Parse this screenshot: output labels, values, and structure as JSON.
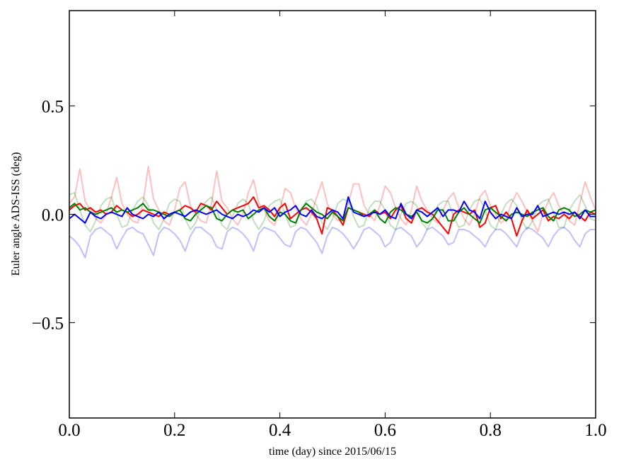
{
  "chart_data": {
    "type": "line",
    "title": "",
    "xlabel": "time (day) since 2015/06/15",
    "ylabel": "Euler angle ADS-ISS (deg)",
    "xlim": [
      0.0,
      1.0
    ],
    "ylim": [
      -0.94,
      0.94
    ],
    "xticks": [
      0.0,
      0.2,
      0.4,
      0.6,
      0.8,
      1.0
    ],
    "xtick_labels": [
      "0.0",
      "0.2",
      "0.4",
      "0.6",
      "0.8",
      "1.0"
    ],
    "yticks": [
      0.5,
      0.0,
      -0.5
    ],
    "ytick_labels": [
      "0.5",
      "0.0",
      "−0.5"
    ],
    "grid": false,
    "x_start": 0.0,
    "x_step": 0.01,
    "series": [
      {
        "name": "faded-red",
        "color": "#ff0000",
        "opacity": 0.25,
        "values": [
          0.05,
          0.08,
          0.21,
          0.06,
          0.02,
          -0.02,
          -0.04,
          0.0,
          0.08,
          0.17,
          0.05,
          0.0,
          -0.03,
          -0.04,
          0.05,
          0.22,
          0.07,
          0.02,
          -0.03,
          -0.05,
          0.02,
          0.12,
          0.15,
          0.04,
          0.0,
          -0.03,
          -0.04,
          0.05,
          0.2,
          0.06,
          0.03,
          -0.02,
          -0.05,
          0.0,
          0.1,
          0.16,
          0.05,
          0.02,
          -0.03,
          -0.05,
          0.02,
          0.12,
          0.1,
          0.03,
          -0.02,
          -0.05,
          0.0,
          0.08,
          0.15,
          0.05,
          0.0,
          -0.03,
          -0.02,
          0.05,
          0.14,
          0.14,
          0.04,
          0.0,
          -0.03,
          0.04,
          0.13,
          0.1,
          0.03,
          -0.02,
          -0.05,
          0.02,
          0.13,
          0.06,
          0.02,
          -0.02,
          -0.04,
          0.02,
          0.07,
          0.1,
          0.03,
          -0.02,
          -0.05,
          0.0,
          0.08,
          0.11,
          0.04,
          0.0,
          -0.04,
          -0.02,
          0.05,
          0.1,
          0.06,
          0.01,
          -0.03,
          -0.08,
          0.0,
          0.06,
          0.1,
          0.04,
          0.0,
          -0.03,
          -0.05,
          0.05,
          0.15,
          0.08,
          0.02
        ]
      },
      {
        "name": "faded-green",
        "color": "#008000",
        "opacity": 0.25,
        "values": [
          0.09,
          0.1,
          0.02,
          -0.05,
          -0.08,
          -0.03,
          0.04,
          0.07,
          0.08,
          0.0,
          -0.06,
          -0.05,
          0.02,
          0.06,
          0.08,
          0.04,
          -0.04,
          -0.07,
          -0.02,
          0.05,
          0.07,
          0.06,
          -0.02,
          -0.07,
          -0.04,
          0.03,
          0.06,
          0.08,
          0.02,
          -0.05,
          -0.07,
          -0.01,
          0.05,
          0.07,
          0.05,
          -0.03,
          -0.07,
          -0.03,
          0.04,
          0.06,
          0.07,
          0.0,
          -0.06,
          -0.05,
          0.02,
          0.06,
          0.07,
          0.04,
          -0.04,
          -0.07,
          -0.02,
          0.05,
          0.07,
          0.06,
          -0.01,
          -0.06,
          -0.05,
          0.03,
          0.06,
          0.06,
          0.02,
          -0.05,
          -0.07,
          0.0,
          0.05,
          0.06,
          0.04,
          -0.04,
          -0.07,
          -0.02,
          0.04,
          0.06,
          0.06,
          -0.01,
          -0.06,
          -0.05,
          0.02,
          0.06,
          0.07,
          0.02,
          -0.05,
          -0.07,
          0.0,
          0.05,
          0.07,
          0.04,
          -0.03,
          -0.07,
          -0.03,
          0.04,
          0.06,
          0.07,
          0.01,
          -0.06,
          -0.06,
          0.02,
          0.06,
          0.09,
          0.04,
          -0.02,
          -0.03
        ]
      },
      {
        "name": "faded-blue",
        "color": "#0000ff",
        "opacity": 0.25,
        "values": [
          -0.1,
          -0.12,
          -0.15,
          -0.2,
          -0.1,
          -0.07,
          -0.06,
          -0.08,
          -0.1,
          -0.16,
          -0.11,
          -0.07,
          -0.06,
          -0.08,
          -0.09,
          -0.14,
          -0.19,
          -0.09,
          -0.06,
          -0.07,
          -0.09,
          -0.12,
          -0.17,
          -0.1,
          -0.06,
          -0.06,
          -0.08,
          -0.1,
          -0.15,
          -0.16,
          -0.08,
          -0.06,
          -0.07,
          -0.09,
          -0.12,
          -0.17,
          -0.09,
          -0.06,
          -0.07,
          -0.08,
          -0.11,
          -0.14,
          -0.15,
          -0.08,
          -0.06,
          -0.07,
          -0.1,
          -0.13,
          -0.18,
          -0.1,
          -0.06,
          -0.07,
          -0.09,
          -0.12,
          -0.16,
          -0.12,
          -0.07,
          -0.06,
          -0.08,
          -0.1,
          -0.15,
          -0.13,
          -0.07,
          -0.06,
          -0.08,
          -0.1,
          -0.15,
          -0.12,
          -0.07,
          -0.06,
          -0.08,
          -0.1,
          -0.14,
          -0.13,
          -0.07,
          -0.07,
          -0.08,
          -0.1,
          -0.12,
          -0.15,
          -0.1,
          -0.07,
          -0.07,
          -0.09,
          -0.12,
          -0.15,
          -0.09,
          -0.06,
          -0.07,
          -0.09,
          -0.11,
          -0.15,
          -0.1,
          -0.07,
          -0.06,
          -0.08,
          -0.12,
          -0.15,
          -0.09,
          -0.07,
          -0.07
        ]
      },
      {
        "name": "red",
        "color": "#ff0000",
        "opacity": 1,
        "values": [
          0.02,
          0.04,
          0.05,
          0.02,
          0.03,
          0.01,
          0.02,
          0.0,
          0.01,
          0.04,
          0.02,
          0.01,
          -0.01,
          0.0,
          0.02,
          0.01,
          0.0,
          -0.01,
          0.01,
          0.0,
          0.01,
          0.02,
          0.04,
          0.03,
          0.01,
          0.05,
          0.04,
          0.02,
          0.06,
          0.03,
          0.0,
          0.02,
          0.03,
          0.04,
          0.05,
          0.08,
          0.03,
          0.04,
          0.02,
          -0.01,
          0.03,
          0.05,
          -0.02,
          0.0,
          0.02,
          0.03,
          0.01,
          -0.02,
          -0.09,
          0.03,
          0.02,
          -0.01,
          -0.05,
          0.03,
          0.02,
          0.01,
          0.0,
          -0.01,
          0.02,
          0.0,
          0.01,
          -0.02,
          0.02,
          0.04,
          -0.02,
          -0.04,
          0.02,
          0.03,
          0.01,
          0.0,
          -0.03,
          -0.06,
          -0.09,
          0.0,
          0.02,
          0.01,
          0.0,
          0.02,
          -0.06,
          -0.04,
          0.03,
          0.04,
          -0.02,
          0.01,
          -0.02,
          -0.1,
          -0.03,
          0.02,
          -0.02,
          0.0,
          0.02,
          -0.03,
          -0.01,
          -0.02,
          0.0,
          -0.02,
          0.01,
          -0.01,
          -0.03,
          0.01,
          0.0
        ]
      },
      {
        "name": "green",
        "color": "#008000",
        "opacity": 1,
        "values": [
          0.03,
          0.05,
          0.02,
          0.03,
          0.01,
          0.0,
          0.01,
          0.02,
          0.03,
          0.01,
          0.02,
          0.01,
          0.02,
          0.03,
          0.05,
          0.02,
          0.02,
          0.01,
          0.0,
          -0.01,
          0.01,
          0.02,
          -0.02,
          -0.03,
          0.0,
          0.02,
          0.04,
          0.03,
          -0.02,
          -0.03,
          0.0,
          0.02,
          0.01,
          0.02,
          -0.02,
          0.0,
          0.02,
          0.03,
          -0.01,
          -0.03,
          0.01,
          0.0,
          -0.03,
          -0.04,
          0.02,
          0.05,
          0.03,
          0.01,
          0.0,
          -0.02,
          0.01,
          -0.01,
          -0.03,
          0.03,
          0.02,
          0.01,
          -0.01,
          0.0,
          0.02,
          -0.02,
          -0.04,
          0.01,
          0.03,
          0.02,
          0.0,
          -0.01,
          0.01,
          -0.03,
          -0.04,
          -0.02,
          0.02,
          0.02,
          -0.03,
          -0.03,
          0.01,
          0.03,
          0.0,
          -0.02,
          -0.04,
          0.02,
          0.03,
          0.01,
          -0.01,
          -0.03,
          0.0,
          0.01,
          0.0,
          -0.01,
          0.01,
          0.02,
          0.03,
          -0.01,
          -0.03,
          0.02,
          0.03,
          0.02,
          -0.01,
          0.0,
          0.02,
          0.01,
          0.02
        ]
      },
      {
        "name": "blue",
        "color": "#0000ff",
        "opacity": 1,
        "values": [
          -0.02,
          0.0,
          -0.02,
          -0.04,
          0.01,
          -0.01,
          -0.02,
          0.0,
          0.01,
          0.0,
          -0.01,
          0.03,
          0.0,
          -0.01,
          -0.02,
          0.0,
          -0.01,
          0.01,
          -0.02,
          0.0,
          0.01,
          0.0,
          -0.01,
          0.01,
          0.02,
          0.01,
          0.0,
          0.01,
          0.02,
          0.0,
          -0.01,
          -0.02,
          0.0,
          -0.01,
          0.0,
          0.02,
          0.01,
          0.03,
          0.01,
          0.03,
          -0.01,
          0.01,
          0.02,
          0.04,
          0.0,
          -0.01,
          0.02,
          -0.01,
          -0.02,
          0.0,
          0.02,
          0.01,
          -0.02,
          0.08,
          0.01,
          0.0,
          -0.01,
          0.0,
          0.01,
          0.0,
          0.02,
          -0.01,
          -0.02,
          0.05,
          0.0,
          -0.02,
          0.02,
          0.01,
          -0.01,
          0.01,
          0.03,
          -0.01,
          0.02,
          0.02,
          0.01,
          0.06,
          0.02,
          0.01,
          -0.02,
          0.06,
          0.01,
          -0.02,
          0.0,
          -0.01,
          -0.02,
          0.03,
          -0.01,
          0.0,
          0.0,
          0.04,
          -0.01,
          0.0,
          0.01,
          0.0,
          0.01,
          0.0,
          0.01,
          -0.02,
          0.02,
          -0.01,
          -0.01
        ]
      }
    ]
  }
}
